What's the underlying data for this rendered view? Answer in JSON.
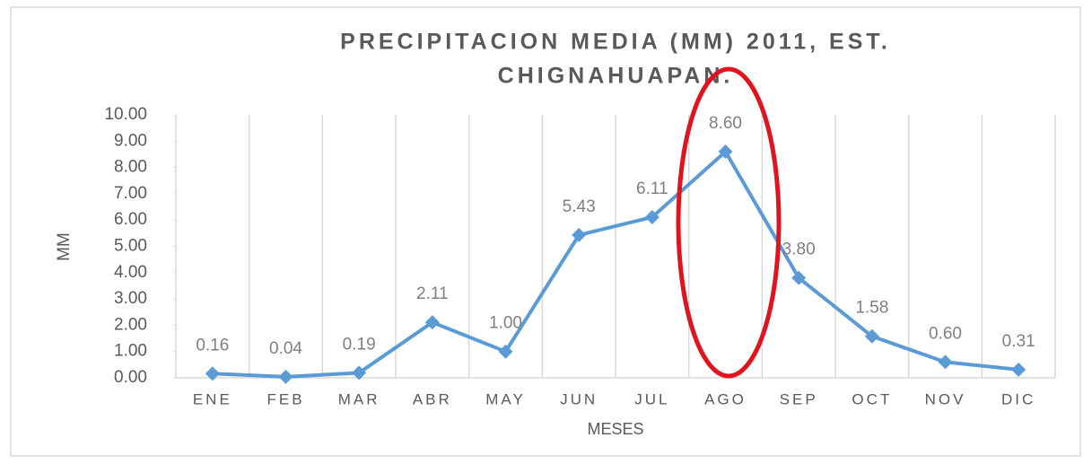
{
  "chart_data": {
    "type": "line",
    "title": [
      "PRECIPITACION MEDIA (MM) 2011, EST.",
      "CHIGNAHUAPAN."
    ],
    "x_label": "MESES",
    "y_label": "MM",
    "categories": [
      "ENE",
      "FEB",
      "MAR",
      "ABR",
      "MAY",
      "JUN",
      "JUL",
      "AGO",
      "SEP",
      "OCT",
      "NOV",
      "DIC"
    ],
    "series": [
      {
        "name": "MM",
        "color": "#5b9bd5",
        "values": [
          0.16,
          0.04,
          0.19,
          2.11,
          1.0,
          5.43,
          6.11,
          8.6,
          3.8,
          1.58,
          0.6,
          0.31
        ],
        "value_labels": [
          "0.16",
          "0.04",
          "0.19",
          "2.11",
          "1.00",
          "5.43",
          "6.11",
          "8.60",
          "3.80",
          "1.58",
          "0.60",
          "0.31"
        ]
      }
    ],
    "ylim": [
      0,
      10
    ],
    "yticks": [
      {
        "value": 0,
        "label": "0.00"
      },
      {
        "value": 1,
        "label": "1.00"
      },
      {
        "value": 2,
        "label": "2.00"
      },
      {
        "value": 3,
        "label": "3.00"
      },
      {
        "value": 4,
        "label": "4.00"
      },
      {
        "value": 5,
        "label": "5.00"
      },
      {
        "value": 6,
        "label": "6.00"
      },
      {
        "value": 7,
        "label": "7.00"
      },
      {
        "value": 8,
        "label": "8.00"
      },
      {
        "value": 9,
        "label": "9.00"
      },
      {
        "value": 10,
        "label": "10.00"
      }
    ],
    "grid": true,
    "legend": false
  }
}
